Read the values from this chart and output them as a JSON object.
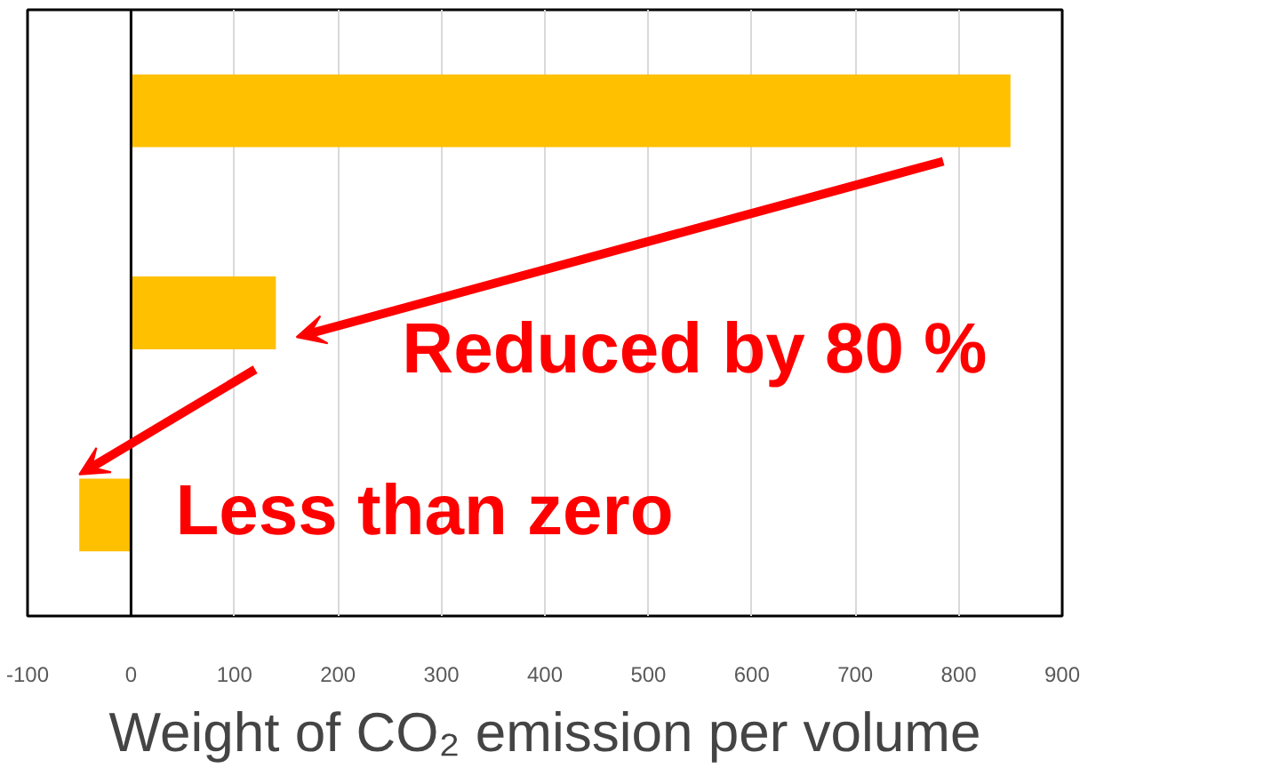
{
  "chart_data": {
    "type": "bar",
    "orientation": "horizontal",
    "categories": [
      null,
      null,
      null
    ],
    "values": [
      850,
      140,
      -50
    ],
    "color": "#ffc000",
    "xlabel": "Weight of CO₂ emission per volume",
    "xlim": [
      -100,
      900
    ],
    "xticks": [
      -100,
      0,
      100,
      200,
      300,
      400,
      500,
      600,
      700,
      800,
      900
    ],
    "grid": "x",
    "tick_labels": "x",
    "annotations": [
      "Reduced by 80 %",
      "Less than zero"
    ]
  }
}
